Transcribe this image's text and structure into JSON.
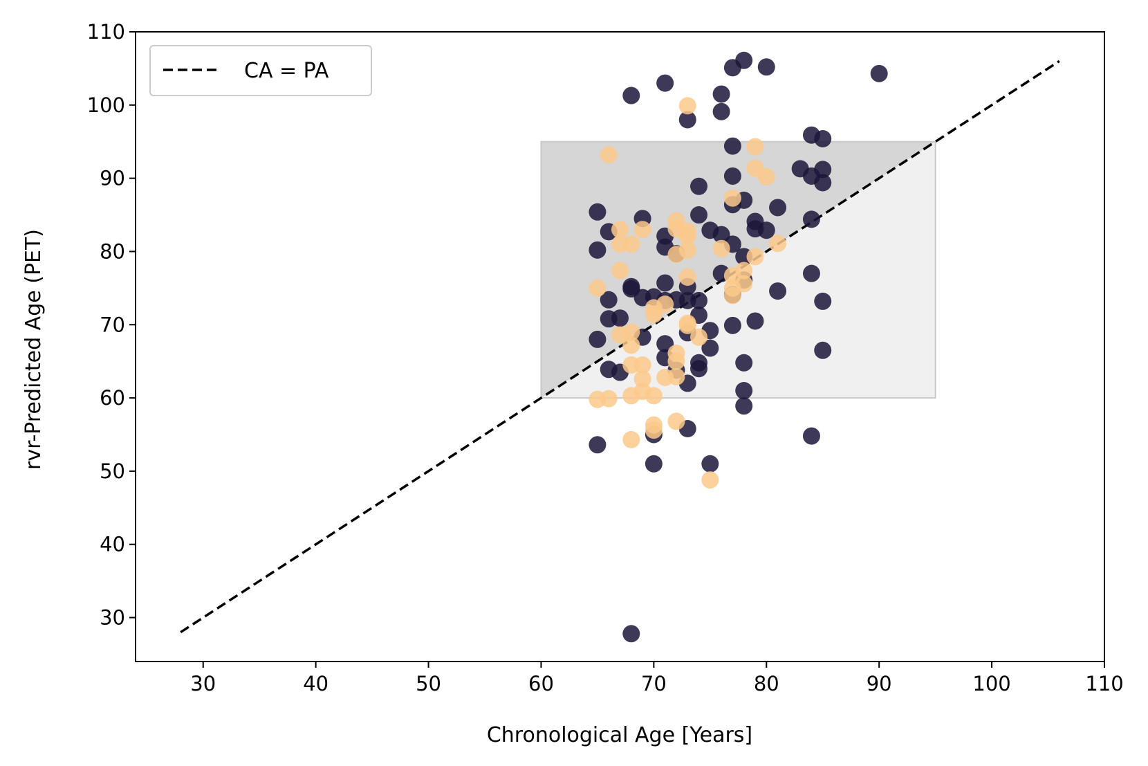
{
  "chart_data": {
    "type": "scatter",
    "xlabel": "Chronological Age [Years]",
    "ylabel": "rvr-Predicted Age (PET)",
    "xlim": [
      24,
      110
    ],
    "ylim": [
      24,
      110
    ],
    "xticks": [
      30,
      40,
      50,
      60,
      70,
      80,
      90,
      100,
      110
    ],
    "yticks": [
      30,
      40,
      50,
      60,
      70,
      80,
      90,
      100,
      110
    ],
    "grid": false,
    "legend": {
      "position": "top-left",
      "entries": [
        {
          "label": "CA = PA",
          "style": "dashed",
          "color": "#000000"
        }
      ]
    },
    "identity_line": {
      "x": [
        28,
        106
      ],
      "y": [
        28,
        106
      ],
      "color": "#000000"
    },
    "shaded_region": {
      "x_range": [
        60,
        95
      ],
      "y_range": [
        60,
        95
      ],
      "upper_left_color": "#d6d6d6",
      "lower_right_color": "#f0f0f0"
    },
    "series": [
      {
        "color": "#1c1639",
        "points": [
          [
            68,
            27.8
          ],
          [
            65,
            53.6
          ],
          [
            70,
            51
          ],
          [
            70,
            55
          ],
          [
            73,
            55.8
          ],
          [
            75,
            51
          ],
          [
            84,
            54.8
          ],
          [
            65,
            68
          ],
          [
            65,
            80.2
          ],
          [
            65,
            85.4
          ],
          [
            66,
            73.4
          ],
          [
            66,
            70.8
          ],
          [
            66,
            63.9
          ],
          [
            66,
            82.7
          ],
          [
            67,
            70.9
          ],
          [
            67,
            63.5
          ],
          [
            68,
            75.2
          ],
          [
            68,
            74.9
          ],
          [
            68,
            101.3
          ],
          [
            69,
            84.5
          ],
          [
            69,
            68.3
          ],
          [
            69,
            73.7
          ],
          [
            70,
            73.8
          ],
          [
            71,
            103
          ],
          [
            71,
            82.1
          ],
          [
            71,
            80.6
          ],
          [
            71,
            75.7
          ],
          [
            71,
            73.3
          ],
          [
            71,
            67.4
          ],
          [
            71,
            65.5
          ],
          [
            72,
            79.7
          ],
          [
            72,
            73.4
          ],
          [
            72,
            63.8
          ],
          [
            73,
            98
          ],
          [
            73,
            75.2
          ],
          [
            73,
            73.3
          ],
          [
            73,
            68.9
          ],
          [
            73,
            62
          ],
          [
            74,
            88.9
          ],
          [
            74,
            85
          ],
          [
            74,
            73.3
          ],
          [
            74,
            71.3
          ],
          [
            74,
            64.8
          ],
          [
            74,
            64
          ],
          [
            75,
            82.9
          ],
          [
            75,
            69.2
          ],
          [
            75,
            66.8
          ],
          [
            76,
            101.5
          ],
          [
            76,
            99.1
          ],
          [
            76,
            82.3
          ],
          [
            76,
            77
          ],
          [
            77,
            105.1
          ],
          [
            77,
            94.4
          ],
          [
            77,
            90.3
          ],
          [
            77,
            86.4
          ],
          [
            77,
            81
          ],
          [
            77,
            74.1
          ],
          [
            77,
            69.9
          ],
          [
            78,
            106.1
          ],
          [
            78,
            87
          ],
          [
            78,
            79.3
          ],
          [
            78,
            76.1
          ],
          [
            78,
            64.8
          ],
          [
            78,
            61
          ],
          [
            78,
            58.9
          ],
          [
            79,
            84.1
          ],
          [
            79,
            83.1
          ],
          [
            79,
            70.5
          ],
          [
            80,
            105.2
          ],
          [
            80,
            82.9
          ],
          [
            81,
            86
          ],
          [
            81,
            74.6
          ],
          [
            83,
            91.3
          ],
          [
            84,
            95.9
          ],
          [
            84,
            90.3
          ],
          [
            84,
            84.4
          ],
          [
            84,
            77
          ],
          [
            85,
            95.4
          ],
          [
            85,
            91.2
          ],
          [
            85,
            89.4
          ],
          [
            85,
            73.2
          ],
          [
            85,
            66.5
          ],
          [
            90,
            104.3
          ]
        ]
      },
      {
        "color": "#fcc98b",
        "points": [
          [
            65,
            75
          ],
          [
            65,
            59.8
          ],
          [
            66,
            93.2
          ],
          [
            66,
            59.9
          ],
          [
            67,
            83
          ],
          [
            67,
            81
          ],
          [
            67,
            77.4
          ],
          [
            67,
            68.6
          ],
          [
            68,
            81
          ],
          [
            68,
            69
          ],
          [
            68,
            67.2
          ],
          [
            68,
            64.5
          ],
          [
            68,
            60.3
          ],
          [
            68,
            54.3
          ],
          [
            69,
            83
          ],
          [
            69,
            64.5
          ],
          [
            69,
            62.6
          ],
          [
            69,
            60.9
          ],
          [
            70,
            72.3
          ],
          [
            70,
            71.4
          ],
          [
            70,
            60.3
          ],
          [
            70,
            56.3
          ],
          [
            70,
            55.6
          ],
          [
            71,
            72.8
          ],
          [
            71,
            62.8
          ],
          [
            72,
            84.2
          ],
          [
            72,
            83.1
          ],
          [
            72,
            79.6
          ],
          [
            72,
            66.1
          ],
          [
            72,
            65
          ],
          [
            72,
            62.9
          ],
          [
            72,
            56.8
          ],
          [
            73,
            99.9
          ],
          [
            73,
            82.8
          ],
          [
            73,
            82.1
          ],
          [
            73,
            80.2
          ],
          [
            73,
            76.5
          ],
          [
            73,
            70.2
          ],
          [
            73,
            69.9
          ],
          [
            74,
            68.3
          ],
          [
            76,
            80.4
          ],
          [
            75,
            48.8
          ],
          [
            77,
            87.3
          ],
          [
            77,
            76.7
          ],
          [
            77,
            75
          ],
          [
            77,
            74
          ],
          [
            78,
            77.4
          ],
          [
            78,
            75.6
          ],
          [
            79,
            94.3
          ],
          [
            79,
            91.4
          ],
          [
            79,
            79.3
          ],
          [
            80,
            90.2
          ],
          [
            81,
            81.1
          ]
        ]
      }
    ]
  }
}
